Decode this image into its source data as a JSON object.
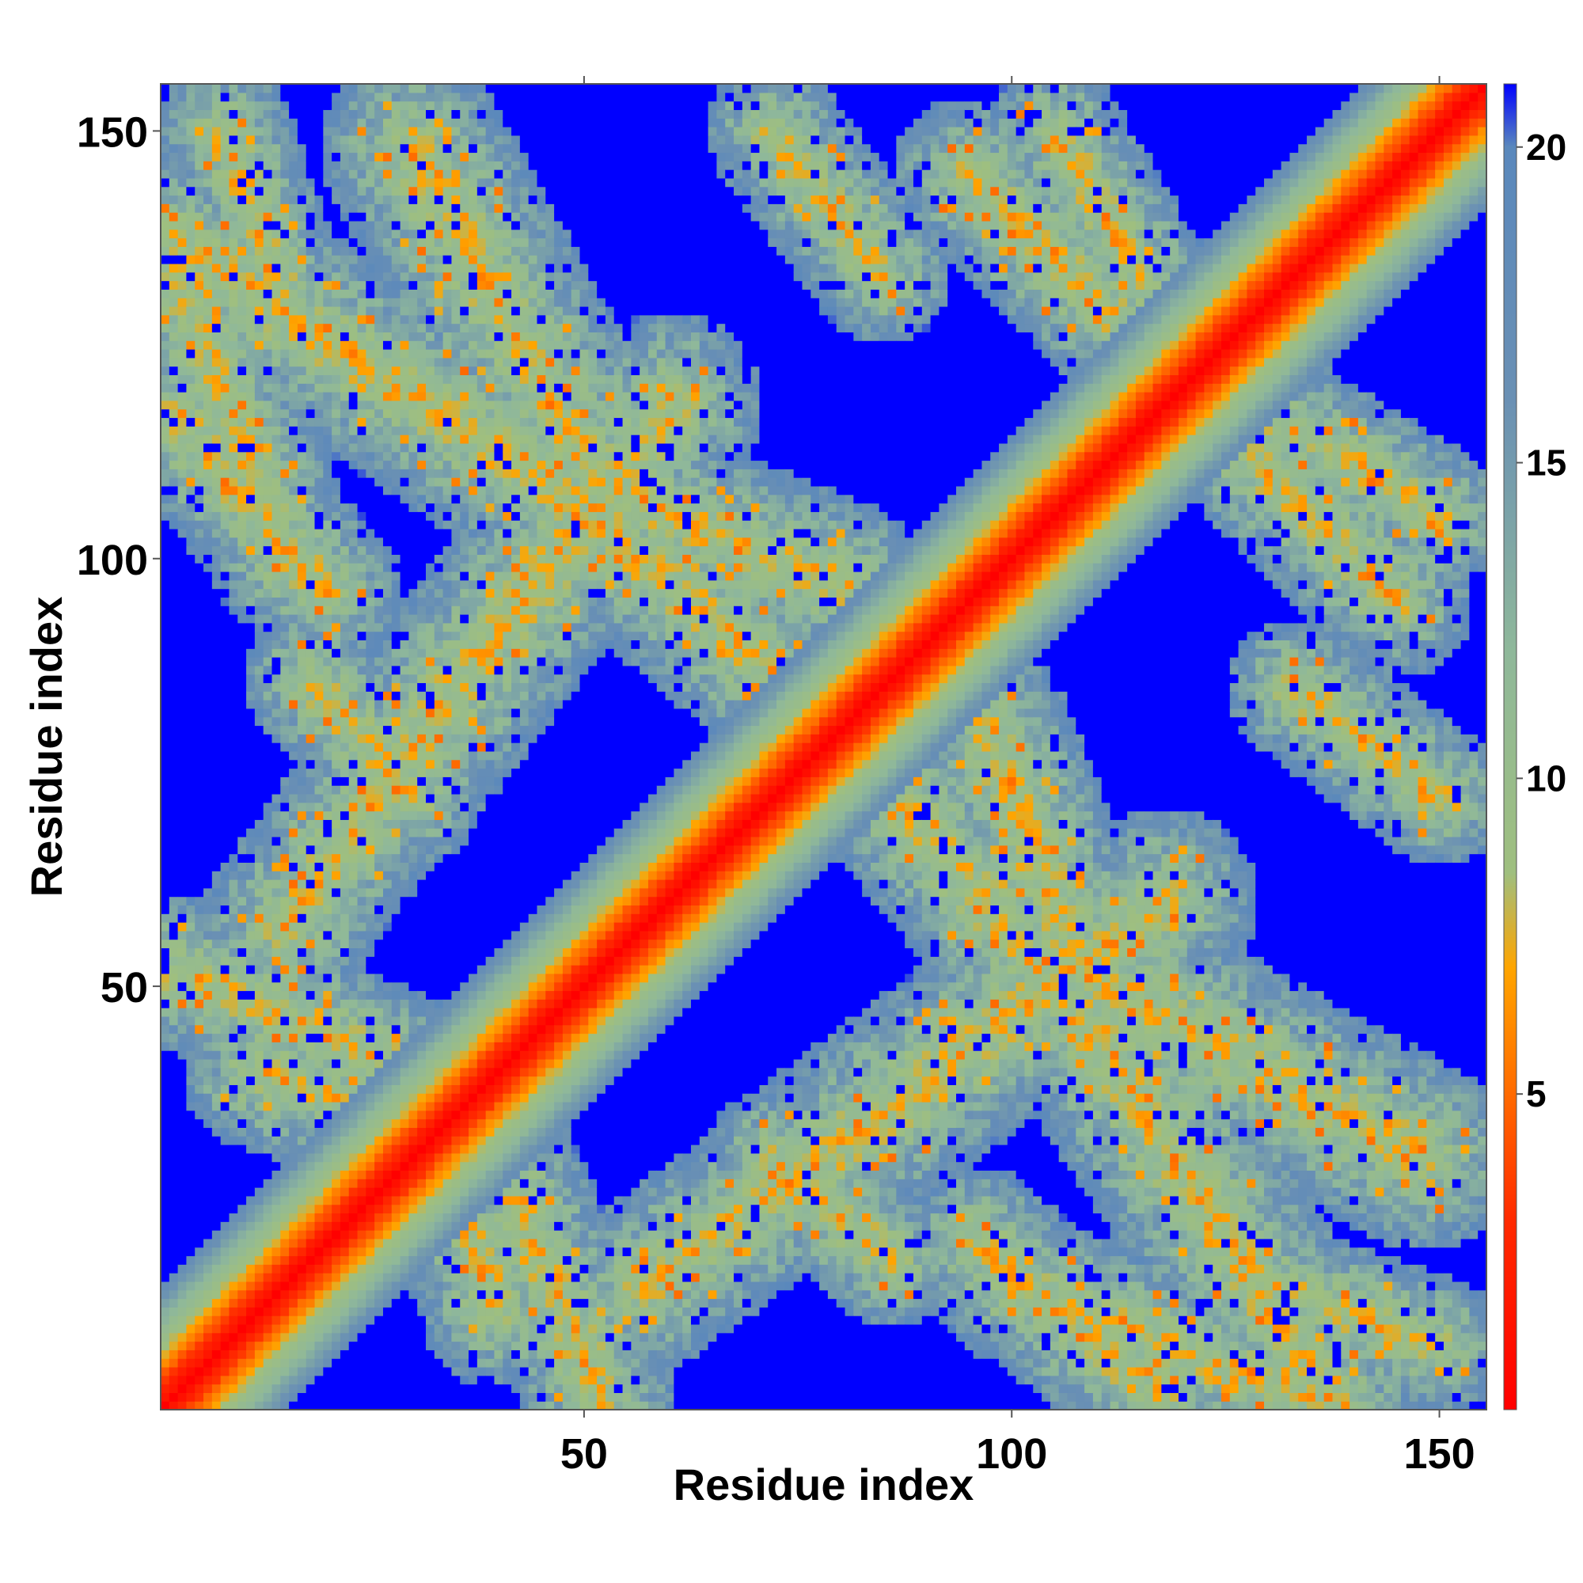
{
  "chart_data": {
    "type": "heatmap",
    "title": "",
    "xlabel": "Residue index",
    "ylabel": "Residue index",
    "n_residues": 155,
    "xlim": [
      1,
      155
    ],
    "ylim": [
      1,
      155
    ],
    "x_ticks": [
      50,
      100,
      150
    ],
    "y_ticks": [
      50,
      100,
      150
    ],
    "colorbar": {
      "range": [
        0,
        21
      ],
      "ticks": [
        5,
        10,
        15,
        20
      ],
      "over_color": "#0000ff",
      "color_stops": [
        {
          "value": 0,
          "color": "#ff0000"
        },
        {
          "value": 3,
          "color": "#ff2a00"
        },
        {
          "value": 5,
          "color": "#ff6a00"
        },
        {
          "value": 7,
          "color": "#ffa500"
        },
        {
          "value": 8.5,
          "color": "#9fbf7f"
        },
        {
          "value": 12,
          "color": "#8fb89a"
        },
        {
          "value": 16,
          "color": "#6a90b4"
        },
        {
          "value": 20,
          "color": "#5a88bc"
        },
        {
          "value": 21,
          "color": "#0000ff"
        }
      ]
    },
    "contact_bands": [
      {
        "start": [
          2,
          137
        ],
        "end": [
          47,
          108
        ],
        "width": 11
      },
      {
        "start": [
          42,
          112
        ],
        "end": [
          80,
          80
        ],
        "width": 10
      },
      {
        "start": [
          2,
          117
        ],
        "end": [
          20,
          96
        ],
        "width": 9
      },
      {
        "start": [
          18,
          86
        ],
        "end": [
          30,
          72
        ],
        "width": 8
      },
      {
        "start": [
          2,
          52
        ],
        "end": [
          30,
          40
        ],
        "width": 9
      },
      {
        "start": [
          30,
          40
        ],
        "end": [
          40,
          12
        ],
        "width": 9
      },
      {
        "start": [
          57,
          15
        ],
        "end": [
          78,
          30
        ],
        "width": 10
      },
      {
        "start": [
          78,
          30
        ],
        "end": [
          118,
          60
        ],
        "width": 11
      },
      {
        "start": [
          97,
          80
        ],
        "end": [
          108,
          52
        ],
        "width": 10
      },
      {
        "start": [
          108,
          52
        ],
        "end": [
          148,
          30
        ],
        "width": 11
      },
      {
        "start": [
          100,
          15
        ],
        "end": [
          135,
          2
        ],
        "width": 9
      },
      {
        "start": [
          130,
          15
        ],
        "end": [
          150,
          8
        ],
        "width": 8
      },
      {
        "start": [
          105,
          150
        ],
        "end": [
          120,
          125
        ],
        "width": 8
      },
      {
        "start": [
          122,
          118
        ],
        "end": [
          145,
          95
        ],
        "width": 9
      },
      {
        "start": [
          133,
          85
        ],
        "end": [
          150,
          72
        ],
        "width": 8
      }
    ]
  }
}
